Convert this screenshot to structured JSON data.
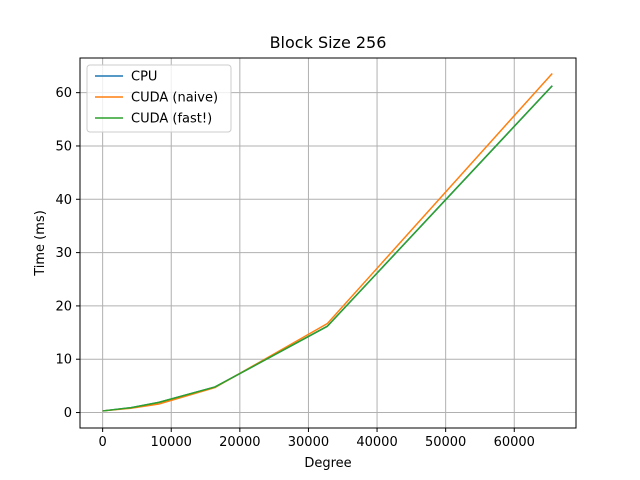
{
  "chart_data": {
    "type": "line",
    "title": "Block Size 256",
    "xlabel": "Degree",
    "ylabel": "Time (ms)",
    "xlim": [
      -3300,
      69000
    ],
    "ylim": [
      -2.9,
      66.5
    ],
    "xticks": [
      0,
      10000,
      20000,
      30000,
      40000,
      50000,
      60000
    ],
    "xtick_labels": [
      "0",
      "10000",
      "20000",
      "30000",
      "40000",
      "50000",
      "60000"
    ],
    "yticks": [
      0,
      10,
      20,
      30,
      40,
      50,
      60
    ],
    "ytick_labels": [
      "0",
      "10",
      "20",
      "30",
      "40",
      "50",
      "60"
    ],
    "grid": true,
    "legend_position": "upper-left",
    "series": [
      {
        "name": "CPU",
        "color": "#1f77b4",
        "x": [
          0,
          4096,
          8192,
          16384,
          32768,
          65536
        ],
        "y": [
          0.3,
          0.9,
          1.9,
          4.8,
          16.2,
          61.3
        ]
      },
      {
        "name": "CUDA (naive)",
        "color": "#ff7f0e",
        "x": [
          0,
          4096,
          8192,
          16384,
          32768,
          65536
        ],
        "y": [
          0.3,
          0.8,
          1.6,
          4.7,
          16.7,
          63.6
        ]
      },
      {
        "name": "CUDA (fast!)",
        "color": "#2ca02c",
        "x": [
          0,
          4096,
          8192,
          16384,
          32768,
          65536
        ],
        "y": [
          0.3,
          0.9,
          1.9,
          4.8,
          16.2,
          61.3
        ]
      }
    ]
  }
}
